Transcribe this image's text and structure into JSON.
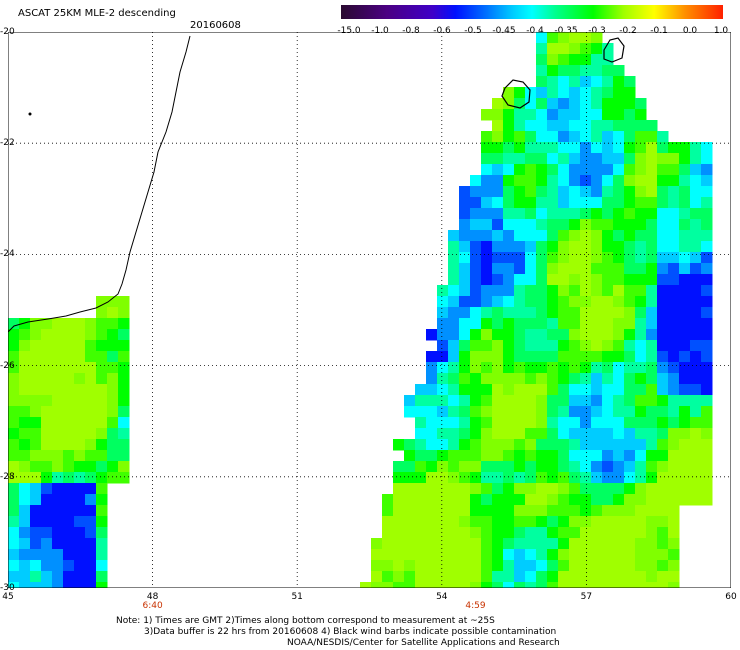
{
  "title": "ASCAT 25KM MLE-2 descending",
  "date": "20160608",
  "colorbar": {
    "labels": [
      "-15.0",
      "-1.0",
      "-0.8",
      "-0.6",
      "-0.5",
      "-0.45",
      "-0.4",
      "-0.35",
      "-0.3",
      "-0.2",
      "-0.1",
      "0.0",
      "1.0"
    ],
    "colors": [
      "#2a0a40",
      "#4b0082",
      "#3f00c8",
      "#0010ff",
      "#0070ff",
      "#00ccff",
      "#00ffff",
      "#00ff90",
      "#00ff00",
      "#a0ff00",
      "#ffff00",
      "#ff9000",
      "#ff3000"
    ]
  },
  "map": {
    "lon_labels": [
      "45",
      "48",
      "51",
      "54",
      "57",
      "60"
    ],
    "lat_labels": [
      "-20",
      "-22",
      "-24",
      "-26",
      "-28",
      "-30"
    ],
    "lon_range": [
      45,
      60
    ],
    "lat_range": [
      -30,
      -20
    ],
    "times": [
      {
        "label": "6:40",
        "lon": 48.0
      },
      {
        "label": "4:59",
        "lon": 54.7
      }
    ]
  },
  "notes": {
    "line1": "Note: 1) Times are GMT 2)Times along bottom correspond to measurement at ~25S",
    "line2": "3)Data buffer is 22 hrs from 20160608 4) Black wind barbs indicate possible contamination",
    "line3": "NOAA/NESDIS/Center for Satellite Applications and Research"
  }
}
